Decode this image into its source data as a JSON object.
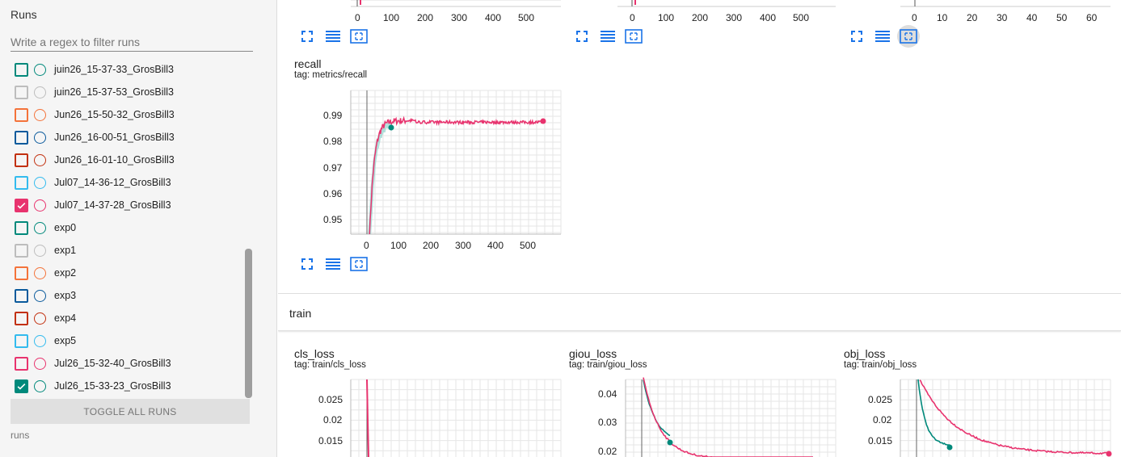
{
  "sidebar": {
    "title": "Runs",
    "filter_placeholder": "Write a regex to filter runs",
    "runs": [
      {
        "name": "juin26_15-37-33_GrosBill3",
        "color": "#00897b",
        "checked": false
      },
      {
        "name": "juin26_15-37-53_GrosBill3",
        "color": "#bdbdbd",
        "checked": false
      },
      {
        "name": "Jun26_15-50-32_GrosBill3",
        "color": "#f4733a",
        "checked": false
      },
      {
        "name": "Jun26_16-00-51_GrosBill3",
        "color": "#0a5a9c",
        "checked": false
      },
      {
        "name": "Jun26_16-01-10_GrosBill3",
        "color": "#c2300f",
        "checked": false
      },
      {
        "name": "Jul07_14-36-12_GrosBill3",
        "color": "#33bbee",
        "checked": false
      },
      {
        "name": "Jul07_14-37-28_GrosBill3",
        "color": "#e8336e",
        "checked": true
      },
      {
        "name": "exp0",
        "color": "#00897b",
        "checked": false
      },
      {
        "name": "exp1",
        "color": "#bdbdbd",
        "checked": false
      },
      {
        "name": "exp2",
        "color": "#f4733a",
        "checked": false
      },
      {
        "name": "exp3",
        "color": "#0a5a9c",
        "checked": false
      },
      {
        "name": "exp4",
        "color": "#c2300f",
        "checked": false
      },
      {
        "name": "exp5",
        "color": "#33bbee",
        "checked": false
      },
      {
        "name": "Jul26_15-32-40_GrosBill3",
        "color": "#e8336e",
        "checked": false
      },
      {
        "name": "Jul26_15-33-23_GrosBill3",
        "color": "#00897b",
        "checked": true
      }
    ],
    "toggle_label": "TOGGLE ALL RUNS",
    "footer": "runs"
  },
  "top_charts": [
    {
      "x_ticks": [
        "0",
        "100",
        "200",
        "300",
        "400",
        "500"
      ]
    },
    {
      "x_ticks": [
        "0",
        "100",
        "200",
        "300",
        "400",
        "500"
      ]
    },
    {
      "x_ticks": [
        "0",
        "10",
        "20",
        "30",
        "40",
        "50",
        "60"
      ]
    }
  ],
  "recall_card": {
    "title": "recall",
    "tag": "tag: metrics/recall",
    "y_ticks": [
      "0.99",
      "0.98",
      "0.97",
      "0.96",
      "0.95"
    ],
    "x_ticks": [
      "0",
      "100",
      "200",
      "300",
      "400",
      "500"
    ]
  },
  "train_section": {
    "title": "train",
    "cards": [
      {
        "title": "cls_loss",
        "tag": "tag: train/cls_loss",
        "y_ticks": [
          "0.025",
          "0.02",
          "0.015"
        ]
      },
      {
        "title": "giou_loss",
        "tag": "tag: train/giou_loss",
        "y_ticks": [
          "0.04",
          "0.03",
          "0.02"
        ]
      },
      {
        "title": "obj_loss",
        "tag": "tag: train/obj_loss",
        "y_ticks": [
          "0.025",
          "0.02",
          "0.015"
        ]
      }
    ]
  },
  "colors": {
    "accent": "#1a73e8",
    "pink": "#e8336e",
    "teal": "#00897b"
  }
}
